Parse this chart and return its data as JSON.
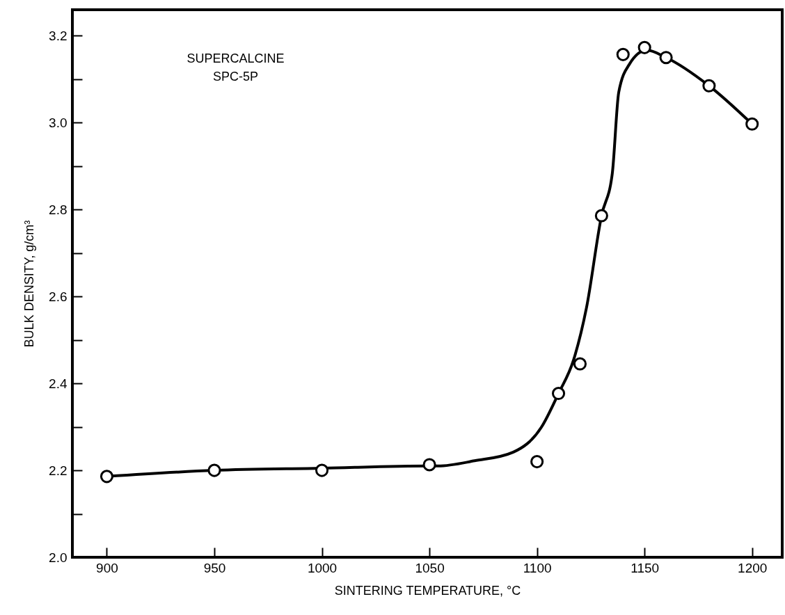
{
  "chart_data": {
    "type": "scatter",
    "xlabel": "SINTERING TEMPERATURE, °C",
    "ylabel": "BULK DENSITY, g/cm³",
    "annotations": [
      "SUPERCALCINE\nSPC-5P"
    ],
    "xlim": [
      884,
      1214
    ],
    "xticks": [
      900,
      950,
      1000,
      1050,
      1100,
      1150,
      1200
    ],
    "ylim": [
      2.0,
      3.26
    ],
    "yticks": [
      {
        "value": 2.0,
        "label": "2.0"
      },
      {
        "value": 2.1,
        "label": null
      },
      2.2,
      {
        "value": 2.3,
        "label": null
      },
      2.4,
      {
        "value": 2.5,
        "label": null
      },
      2.6,
      {
        "value": 2.7,
        "label": null
      },
      2.8,
      {
        "value": 2.9,
        "label": null
      },
      {
        "value": 3.0,
        "label": "3.0"
      },
      {
        "value": 3.1,
        "label": null
      },
      3.2
    ],
    "grid": false,
    "series": [
      {
        "type": "line",
        "color": "#000000",
        "marker": "none",
        "line_style": "solid",
        "x": [
          900,
          950,
          1000,
          1050,
          1054,
          1071,
          1089,
          1102,
          1110,
          1117,
          1123,
          1130,
          1135,
          1138,
          1143,
          1151,
          1160,
          1180,
          1200
        ],
        "values": [
          2.186,
          2.2,
          2.205,
          2.21,
          2.21,
          2.222,
          2.242,
          2.299,
          2.377,
          2.454,
          2.574,
          2.786,
          2.883,
          3.07,
          3.135,
          3.167,
          3.15,
          3.085,
          2.997
        ]
      },
      {
        "type": "scatter",
        "color": "#000000",
        "marker": "circle",
        "x": [
          900,
          950,
          1000,
          1050,
          1100,
          1110,
          1120,
          1130,
          1140,
          1150,
          1160,
          1180,
          1200
        ],
        "values": [
          2.186,
          2.2,
          2.2,
          2.213,
          2.22,
          2.377,
          2.445,
          2.786,
          3.157,
          3.173,
          3.15,
          3.085,
          2.997
        ]
      }
    ]
  }
}
